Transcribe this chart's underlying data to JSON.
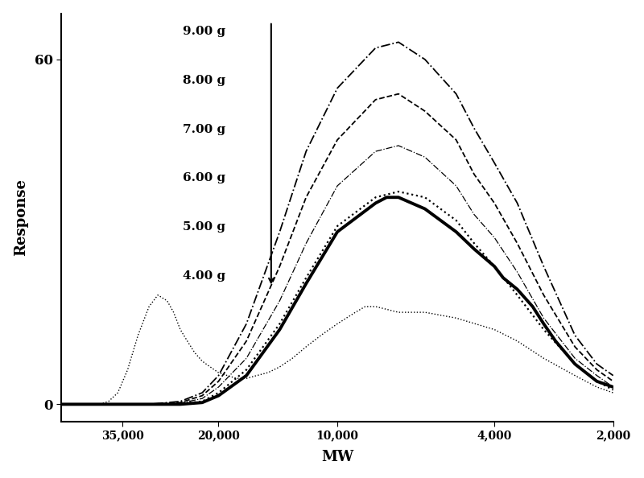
{
  "title": "",
  "xlabel": "MW",
  "ylabel": "Response",
  "xlim_log": [
    2000,
    50000
  ],
  "ylim": [
    -3,
    68
  ],
  "yticks": [
    0,
    60
  ],
  "xtick_positions": [
    35000,
    20000,
    10000,
    4000,
    2000
  ],
  "xtick_labels": [
    "35,000",
    "20,000",
    "10,000",
    "4,000",
    "2,000"
  ],
  "background_color": "#ffffff",
  "line_color": "#000000",
  "legend_labels": [
    "9.00 g",
    "8.00 g",
    "7.00 g",
    "6.00 g",
    "5.00 g",
    "4.00 g"
  ],
  "series": [
    {
      "label": "9.00 g",
      "linestyle": "-.",
      "linewidth": 1.3,
      "x": [
        50000,
        40000,
        35000,
        30000,
        25000,
        22000,
        20000,
        17000,
        14000,
        12000,
        10000,
        8000,
        7000,
        6000,
        5000,
        4500,
        4000,
        3500,
        3000,
        2500,
        2200,
        2000
      ],
      "y": [
        0,
        0,
        0,
        0,
        0.5,
        2,
        5,
        14,
        30,
        44,
        55,
        62,
        63,
        60,
        54,
        48,
        42,
        35,
        24,
        12,
        7,
        5
      ]
    },
    {
      "label": "8.00 g",
      "linestyle": "--",
      "linewidth": 1.3,
      "x": [
        50000,
        40000,
        35000,
        30000,
        25000,
        22000,
        20000,
        17000,
        14000,
        12000,
        10000,
        8000,
        7000,
        6000,
        5000,
        4500,
        4000,
        3500,
        3000,
        2500,
        2200,
        2000
      ],
      "y": [
        0,
        0,
        0,
        0,
        0.3,
        1.5,
        4,
        11,
        24,
        36,
        46,
        53,
        54,
        51,
        46,
        40,
        35,
        28,
        19,
        10,
        6,
        4
      ]
    },
    {
      "label": "7.00 g",
      "linestyle": "-.",
      "linewidth": 0.9,
      "x": [
        50000,
        40000,
        35000,
        30000,
        25000,
        22000,
        20000,
        17000,
        14000,
        12000,
        10000,
        8000,
        7000,
        6000,
        5000,
        4500,
        4000,
        3500,
        3000,
        2500,
        2200,
        2000
      ],
      "y": [
        0,
        0,
        0,
        0,
        0.2,
        1.0,
        3,
        8,
        18,
        28,
        38,
        44,
        45,
        43,
        38,
        33,
        29,
        23,
        15,
        8,
        5,
        3
      ]
    },
    {
      "label": "6.00 g",
      "linestyle": ":",
      "linewidth": 1.6,
      "x": [
        50000,
        40000,
        35000,
        30000,
        25000,
        22000,
        20000,
        17000,
        14000,
        12000,
        10000,
        8000,
        7000,
        6000,
        5000,
        4500,
        4000,
        3500,
        3000,
        2500,
        2200,
        2000
      ],
      "y": [
        0,
        0,
        0,
        0,
        0.1,
        0.5,
        2,
        6,
        14,
        22,
        31,
        36,
        37,
        36,
        32,
        28,
        24,
        19,
        13,
        7,
        4,
        2.5
      ]
    },
    {
      "label": "5.00 g",
      "linestyle": "-",
      "linewidth": 2.8,
      "x": [
        50000,
        40000,
        35000,
        30000,
        25000,
        22000,
        20000,
        17000,
        14000,
        12000,
        10000,
        8000,
        7500,
        7000,
        6000,
        5000,
        4500,
        4000,
        3800,
        3500,
        3200,
        3000,
        2800,
        2500,
        2200,
        2000
      ],
      "y": [
        0,
        0,
        0,
        0,
        0,
        0.3,
        1.5,
        5,
        13,
        21,
        30,
        35,
        36,
        36,
        34,
        30,
        27,
        24,
        22,
        20,
        17,
        14,
        11,
        7,
        4,
        3
      ]
    },
    {
      "label": "4.00 g",
      "linestyle": ":",
      "linewidth": 1.0,
      "x": [
        50000,
        40000,
        38000,
        36000,
        34000,
        32000,
        30000,
        28500,
        27000,
        26000,
        25000,
        24000,
        23000,
        22000,
        21000,
        20000,
        19000,
        18000,
        17000,
        16000,
        15000,
        14000,
        13000,
        12000,
        11000,
        10000,
        9000,
        8500,
        8000,
        7000,
        6000,
        5000,
        4000,
        3500,
        3000,
        2500,
        2200,
        2000
      ],
      "y": [
        0,
        0,
        0.5,
        2,
        6,
        12,
        17,
        19,
        18,
        16,
        13,
        11,
        9,
        7.5,
        6.5,
        5.5,
        5,
        4.5,
        4.5,
        5,
        5.5,
        6.5,
        8,
        10,
        12,
        14,
        16,
        17,
        17,
        16,
        16,
        15,
        13,
        11,
        8,
        5,
        3,
        2
      ]
    }
  ]
}
